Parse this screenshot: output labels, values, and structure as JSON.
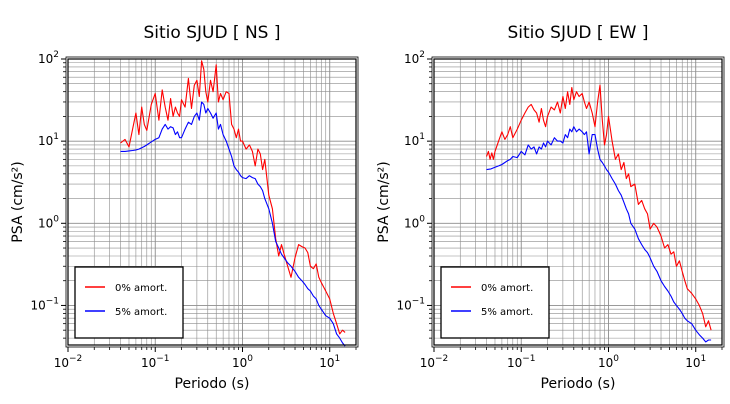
{
  "chart_data": [
    {
      "type": "line",
      "title": "Sitio SJUD [ NS ]",
      "xlabel": "Periodo (s)",
      "ylabel": "PSA (cm/s²)",
      "xscale": "log",
      "yscale": "log",
      "xlim": [
        0.01,
        20
      ],
      "ylim": [
        0.033,
        100
      ],
      "grid": true,
      "legend_position": "bottom-left",
      "x_ticks": [
        {
          "base": "10",
          "exp": "−2"
        },
        {
          "base": "10",
          "exp": "−1"
        },
        {
          "base": "10",
          "exp": "0"
        },
        {
          "base": "10",
          "exp": "1"
        }
      ],
      "y_ticks": [
        {
          "base": "10",
          "exp": "−1"
        },
        {
          "base": "10",
          "exp": "0"
        },
        {
          "base": "10",
          "exp": "1"
        },
        {
          "base": "10",
          "exp": "2"
        }
      ],
      "series": [
        {
          "name": "0% amort.",
          "color": "#ff0000",
          "x": [
            0.04,
            0.045,
            0.05,
            0.055,
            0.06,
            0.065,
            0.07,
            0.075,
            0.08,
            0.09,
            0.1,
            0.11,
            0.12,
            0.13,
            0.14,
            0.15,
            0.16,
            0.17,
            0.18,
            0.19,
            0.2,
            0.22,
            0.24,
            0.26,
            0.28,
            0.3,
            0.32,
            0.34,
            0.36,
            0.38,
            0.4,
            0.43,
            0.46,
            0.5,
            0.53,
            0.56,
            0.6,
            0.65,
            0.7,
            0.75,
            0.8,
            0.85,
            0.9,
            0.95,
            1.0,
            1.1,
            1.2,
            1.3,
            1.4,
            1.5,
            1.6,
            1.7,
            1.8,
            2.0,
            2.2,
            2.4,
            2.6,
            2.8,
            3.0,
            3.3,
            3.6,
            4.0,
            4.4,
            4.8,
            5.2,
            5.6,
            6.0,
            6.5,
            7.0,
            7.5,
            8.0,
            9.0,
            10.0,
            11.0,
            12.0,
            13.0,
            14.0,
            15.0
          ],
          "y": [
            9.5,
            10.5,
            8.5,
            14.0,
            22.0,
            12.0,
            26.0,
            16.0,
            13.5,
            28.0,
            38.0,
            18.0,
            42.0,
            26.0,
            18.0,
            33.0,
            20.0,
            26.0,
            22.0,
            20.0,
            32.0,
            26.0,
            58.0,
            25.0,
            48.0,
            55.0,
            35.0,
            95.0,
            75.0,
            40.0,
            30.0,
            55.0,
            40.0,
            85.0,
            30.0,
            38.0,
            32.0,
            40.0,
            38.0,
            16.0,
            14.0,
            11.0,
            14.0,
            10.0,
            10.0,
            8.0,
            9.0,
            7.5,
            5.0,
            8.0,
            7.0,
            4.5,
            6.0,
            2.2,
            1.5,
            0.65,
            0.4,
            0.55,
            0.42,
            0.3,
            0.22,
            0.38,
            0.55,
            0.52,
            0.5,
            0.44,
            0.3,
            0.28,
            0.32,
            0.22,
            0.19,
            0.15,
            0.12,
            0.08,
            0.06,
            0.045,
            0.05,
            0.047
          ]
        },
        {
          "name": "5% amort.",
          "color": "#0000ff",
          "x": [
            0.04,
            0.045,
            0.05,
            0.055,
            0.06,
            0.065,
            0.07,
            0.075,
            0.08,
            0.09,
            0.1,
            0.11,
            0.12,
            0.13,
            0.14,
            0.15,
            0.16,
            0.17,
            0.18,
            0.19,
            0.2,
            0.22,
            0.24,
            0.26,
            0.28,
            0.3,
            0.32,
            0.34,
            0.36,
            0.38,
            0.4,
            0.43,
            0.46,
            0.5,
            0.53,
            0.56,
            0.6,
            0.65,
            0.7,
            0.75,
            0.8,
            0.85,
            0.9,
            0.95,
            1.0,
            1.1,
            1.2,
            1.3,
            1.4,
            1.5,
            1.6,
            1.7,
            1.8,
            2.0,
            2.2,
            2.4,
            2.6,
            2.8,
            3.0,
            3.3,
            3.6,
            4.0,
            4.4,
            4.8,
            5.2,
            5.6,
            6.0,
            6.5,
            7.0,
            7.5,
            8.0,
            9.0,
            10.0,
            11.0,
            12.0,
            13.0,
            14.0,
            15.0
          ],
          "y": [
            7.5,
            7.5,
            7.6,
            7.7,
            7.8,
            8.0,
            8.3,
            8.6,
            9.0,
            9.8,
            10.5,
            11.0,
            14.0,
            16.0,
            14.0,
            15.0,
            14.5,
            12.0,
            13.0,
            11.0,
            11.0,
            14.0,
            17.0,
            16.0,
            20.0,
            22.0,
            18.0,
            30.0,
            28.0,
            22.0,
            25.0,
            22.0,
            19.0,
            22.0,
            14.0,
            16.0,
            12.0,
            10.0,
            8.0,
            6.5,
            5.0,
            4.5,
            4.2,
            3.8,
            3.6,
            3.5,
            3.8,
            3.6,
            3.5,
            3.0,
            2.8,
            2.5,
            2.0,
            1.5,
            1.0,
            0.6,
            0.5,
            0.42,
            0.38,
            0.33,
            0.3,
            0.26,
            0.22,
            0.2,
            0.18,
            0.16,
            0.15,
            0.13,
            0.12,
            0.1,
            0.09,
            0.075,
            0.07,
            0.06,
            0.045,
            0.04,
            0.035,
            0.032
          ]
        }
      ]
    },
    {
      "type": "line",
      "title": "Sitio SJUD [ EW ]",
      "xlabel": "Periodo (s)",
      "ylabel": "PSA (cm/s²)",
      "xscale": "log",
      "yscale": "log",
      "xlim": [
        0.01,
        20
      ],
      "ylim": [
        0.033,
        100
      ],
      "grid": true,
      "legend_position": "bottom-left",
      "x_ticks": [
        {
          "base": "10",
          "exp": "−2"
        },
        {
          "base": "10",
          "exp": "−1"
        },
        {
          "base": "10",
          "exp": "0"
        },
        {
          "base": "10",
          "exp": "1"
        }
      ],
      "y_ticks": [
        {
          "base": "10",
          "exp": "−1"
        },
        {
          "base": "10",
          "exp": "0"
        },
        {
          "base": "10",
          "exp": "1"
        },
        {
          "base": "10",
          "exp": "2"
        }
      ],
      "series": [
        {
          "name": "0% amort.",
          "color": "#ff0000",
          "x": [
            0.04,
            0.042,
            0.044,
            0.046,
            0.048,
            0.05,
            0.055,
            0.06,
            0.065,
            0.07,
            0.075,
            0.08,
            0.09,
            0.1,
            0.11,
            0.12,
            0.13,
            0.14,
            0.15,
            0.16,
            0.17,
            0.18,
            0.19,
            0.2,
            0.22,
            0.24,
            0.26,
            0.28,
            0.3,
            0.32,
            0.34,
            0.36,
            0.38,
            0.4,
            0.43,
            0.46,
            0.5,
            0.53,
            0.56,
            0.6,
            0.65,
            0.7,
            0.75,
            0.8,
            0.85,
            0.9,
            0.95,
            1.0,
            1.1,
            1.2,
            1.3,
            1.4,
            1.5,
            1.6,
            1.7,
            1.8,
            2.0,
            2.2,
            2.4,
            2.6,
            2.8,
            3.0,
            3.3,
            3.6,
            4.0,
            4.4,
            4.8,
            5.2,
            5.6,
            6.0,
            6.5,
            7.0,
            7.5,
            8.0,
            9.0,
            10.0,
            11.0,
            12.0,
            13.0,
            14.0,
            15.0
          ],
          "y": [
            6.5,
            7.5,
            6.0,
            7.2,
            6.0,
            7.5,
            10.0,
            13.0,
            10.5,
            12.0,
            15.0,
            11.0,
            14.0,
            18.0,
            22.0,
            26.0,
            28.0,
            24.0,
            22.0,
            17.0,
            25.0,
            18.0,
            15.0,
            20.0,
            26.0,
            24.0,
            30.0,
            22.0,
            35.0,
            25.0,
            40.0,
            28.0,
            45.0,
            32.0,
            40.0,
            35.0,
            38.0,
            30.0,
            25.0,
            30.0,
            22.0,
            15.0,
            30.0,
            48.0,
            18.0,
            9.0,
            12.0,
            20.0,
            10.0,
            6.0,
            7.0,
            4.5,
            5.5,
            3.5,
            4.0,
            2.8,
            3.0,
            1.7,
            1.9,
            1.5,
            1.3,
            0.85,
            1.0,
            0.9,
            0.7,
            0.5,
            0.55,
            0.42,
            0.45,
            0.3,
            0.35,
            0.26,
            0.2,
            0.16,
            0.14,
            0.12,
            0.1,
            0.08,
            0.055,
            0.065,
            0.05
          ]
        },
        {
          "name": "5% amort.",
          "color": "#0000ff",
          "x": [
            0.04,
            0.045,
            0.05,
            0.055,
            0.06,
            0.065,
            0.07,
            0.075,
            0.08,
            0.09,
            0.1,
            0.11,
            0.12,
            0.13,
            0.14,
            0.15,
            0.16,
            0.17,
            0.18,
            0.19,
            0.2,
            0.22,
            0.24,
            0.26,
            0.28,
            0.3,
            0.32,
            0.34,
            0.36,
            0.38,
            0.4,
            0.43,
            0.46,
            0.5,
            0.53,
            0.56,
            0.6,
            0.65,
            0.7,
            0.75,
            0.8,
            0.85,
            0.9,
            0.95,
            1.0,
            1.1,
            1.2,
            1.3,
            1.4,
            1.5,
            1.6,
            1.7,
            1.8,
            2.0,
            2.2,
            2.4,
            2.6,
            2.8,
            3.0,
            3.3,
            3.6,
            4.0,
            4.4,
            4.8,
            5.2,
            5.6,
            6.0,
            6.5,
            7.0,
            7.5,
            8.0,
            9.0,
            10.0,
            11.0,
            12.0,
            13.0,
            14.0,
            15.0
          ],
          "y": [
            4.5,
            4.6,
            4.8,
            5.0,
            5.2,
            5.5,
            5.8,
            6.0,
            6.5,
            6.3,
            7.5,
            6.8,
            9.0,
            8.0,
            8.5,
            7.0,
            8.5,
            8.0,
            9.5,
            8.5,
            10.0,
            9.0,
            11.0,
            10.0,
            10.0,
            9.5,
            12.0,
            11.0,
            14.0,
            13.0,
            15.0,
            13.0,
            14.0,
            13.0,
            12.0,
            13.0,
            7.0,
            12.0,
            12.0,
            8.0,
            6.0,
            5.5,
            5.0,
            4.5,
            4.2,
            3.5,
            3.0,
            2.5,
            2.2,
            1.8,
            1.5,
            1.3,
            1.0,
            0.85,
            0.65,
            0.55,
            0.48,
            0.44,
            0.38,
            0.3,
            0.26,
            0.2,
            0.17,
            0.15,
            0.13,
            0.11,
            0.1,
            0.09,
            0.08,
            0.07,
            0.065,
            0.06,
            0.05,
            0.044,
            0.04,
            0.036,
            0.038,
            0.038
          ]
        }
      ]
    }
  ]
}
